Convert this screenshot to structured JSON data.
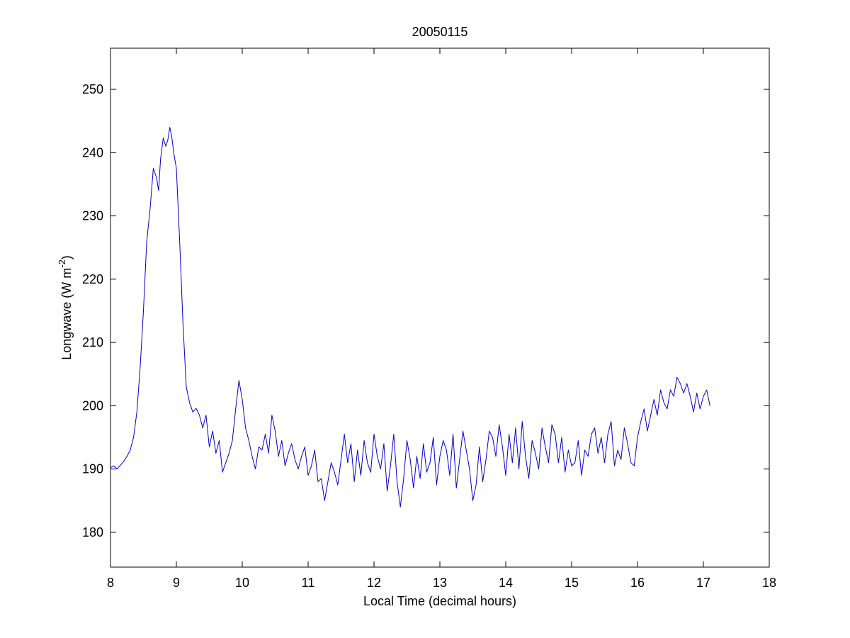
{
  "chart_data": {
    "type": "line",
    "title": "20050115",
    "xlabel": "Local Time (decimal hours)",
    "ylabel_main": "Longwave (W m",
    "ylabel_sup": "-2",
    "ylabel_close": ")",
    "xlim": [
      8,
      18
    ],
    "ylim": [
      174.5,
      256.5
    ],
    "xticks": [
      8,
      9,
      10,
      11,
      12,
      13,
      14,
      15,
      16,
      17,
      18
    ],
    "yticks": [
      180,
      190,
      200,
      210,
      220,
      230,
      240,
      250
    ],
    "grid": false,
    "line_color": "#0000c8",
    "series": [
      {
        "x": [
          8.0,
          8.05,
          8.1,
          8.15,
          8.2,
          8.25,
          8.3,
          8.35,
          8.4,
          8.45,
          8.5,
          8.55,
          8.6,
          8.65,
          8.7,
          8.73,
          8.76,
          8.8,
          8.84,
          8.87,
          8.9,
          8.93,
          8.96,
          9.0,
          9.05,
          9.1,
          9.15,
          9.2,
          9.25,
          9.3,
          9.35,
          9.4,
          9.45,
          9.5,
          9.55,
          9.6,
          9.65,
          9.7,
          9.75,
          9.8,
          9.85,
          9.9,
          9.95,
          10.0,
          10.05,
          10.1,
          10.15,
          10.2,
          10.25,
          10.3,
          10.35,
          10.4,
          10.45,
          10.5,
          10.55,
          10.6,
          10.65,
          10.7,
          10.75,
          10.8,
          10.85,
          10.9,
          10.95,
          11.0,
          11.05,
          11.1,
          11.15,
          11.2,
          11.25,
          11.3,
          11.35,
          11.4,
          11.45,
          11.5,
          11.55,
          11.6,
          11.65,
          11.7,
          11.75,
          11.8,
          11.85,
          11.9,
          11.95,
          12.0,
          12.05,
          12.1,
          12.15,
          12.2,
          12.25,
          12.3,
          12.35,
          12.4,
          12.45,
          12.5,
          12.55,
          12.6,
          12.65,
          12.7,
          12.75,
          12.8,
          12.85,
          12.9,
          12.95,
          13.0,
          13.05,
          13.1,
          13.15,
          13.2,
          13.25,
          13.3,
          13.35,
          13.4,
          13.45,
          13.5,
          13.55,
          13.6,
          13.65,
          13.7,
          13.75,
          13.8,
          13.85,
          13.9,
          13.95,
          14.0,
          14.05,
          14.1,
          14.15,
          14.2,
          14.25,
          14.3,
          14.35,
          14.4,
          14.45,
          14.5,
          14.55,
          14.6,
          14.65,
          14.7,
          14.75,
          14.8,
          14.85,
          14.9,
          14.95,
          15.0,
          15.05,
          15.1,
          15.15,
          15.2,
          15.25,
          15.3,
          15.35,
          15.4,
          15.45,
          15.5,
          15.55,
          15.6,
          15.65,
          15.7,
          15.75,
          15.8,
          15.85,
          15.9,
          15.95,
          16.0,
          16.05,
          16.1,
          16.15,
          16.2,
          16.25,
          16.3,
          16.35,
          16.4,
          16.45,
          16.5,
          16.55,
          16.6,
          16.65,
          16.7,
          16.75,
          16.8,
          16.85,
          16.9,
          16.95,
          17.0,
          17.05,
          17.1
        ],
        "y": [
          190.2,
          190.5,
          190.0,
          190.6,
          191.2,
          192.0,
          193.0,
          195.0,
          199.0,
          206.0,
          215.0,
          226.0,
          231.0,
          237.5,
          236.0,
          234.0,
          239.0,
          242.3,
          241.0,
          242.0,
          244.0,
          242.5,
          240.0,
          237.5,
          226.0,
          213.0,
          203.0,
          200.5,
          199.0,
          199.6,
          198.5,
          196.5,
          198.5,
          193.5,
          196.0,
          192.5,
          194.5,
          189.5,
          191.0,
          192.5,
          194.5,
          199.5,
          204.0,
          201.0,
          196.5,
          194.5,
          192.0,
          190.0,
          193.5,
          193.0,
          195.5,
          192.5,
          198.5,
          196.0,
          192.0,
          194.5,
          190.5,
          192.5,
          194.0,
          191.5,
          190.0,
          192.0,
          193.5,
          189.0,
          190.5,
          193.0,
          188.0,
          188.5,
          185.0,
          188.0,
          191.0,
          189.5,
          187.5,
          191.5,
          195.5,
          191.0,
          194.0,
          188.0,
          193.0,
          189.0,
          194.5,
          191.0,
          189.5,
          195.5,
          192.0,
          190.0,
          194.0,
          186.5,
          190.5,
          195.5,
          188.0,
          184.0,
          188.5,
          194.5,
          191.5,
          187.0,
          192.0,
          188.5,
          194.0,
          189.5,
          191.0,
          195.0,
          187.5,
          192.0,
          194.5,
          193.0,
          189.0,
          195.5,
          187.0,
          191.5,
          196.0,
          193.0,
          190.0,
          185.0,
          187.5,
          193.5,
          188.0,
          191.5,
          196.0,
          195.0,
          192.0,
          197.0,
          193.5,
          189.0,
          195.5,
          191.0,
          196.5,
          190.0,
          197.5,
          192.0,
          188.5,
          194.5,
          192.5,
          190.0,
          196.5,
          193.5,
          191.0,
          197.0,
          195.5,
          191.0,
          195.0,
          189.5,
          193.0,
          190.5,
          191.0,
          194.5,
          189.0,
          193.0,
          192.0,
          195.5,
          196.5,
          192.5,
          195.0,
          191.0,
          195.5,
          197.5,
          190.5,
          193.0,
          191.5,
          196.5,
          194.0,
          191.0,
          190.5,
          195.0,
          197.5,
          199.5,
          196.0,
          198.5,
          201.0,
          198.5,
          202.5,
          200.5,
          199.5,
          202.5,
          201.5,
          204.5,
          203.5,
          202.0,
          203.5,
          201.5,
          199.0,
          202.0,
          199.5,
          201.5,
          202.5,
          200.0
        ]
      }
    ]
  }
}
